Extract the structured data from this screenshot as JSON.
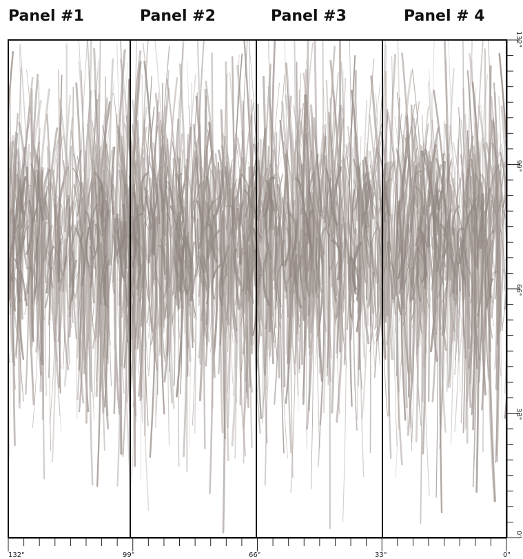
{
  "panels": [
    "Panel #1",
    "Panel #2",
    "Panel #3",
    "Panel # 4"
  ],
  "bottom_ruler": [
    "132\"",
    "99\"",
    "66\"",
    "33\"",
    "0\""
  ],
  "right_ruler": [
    "132\"",
    "99\"",
    "66\"",
    "33\"",
    "0\""
  ]
}
